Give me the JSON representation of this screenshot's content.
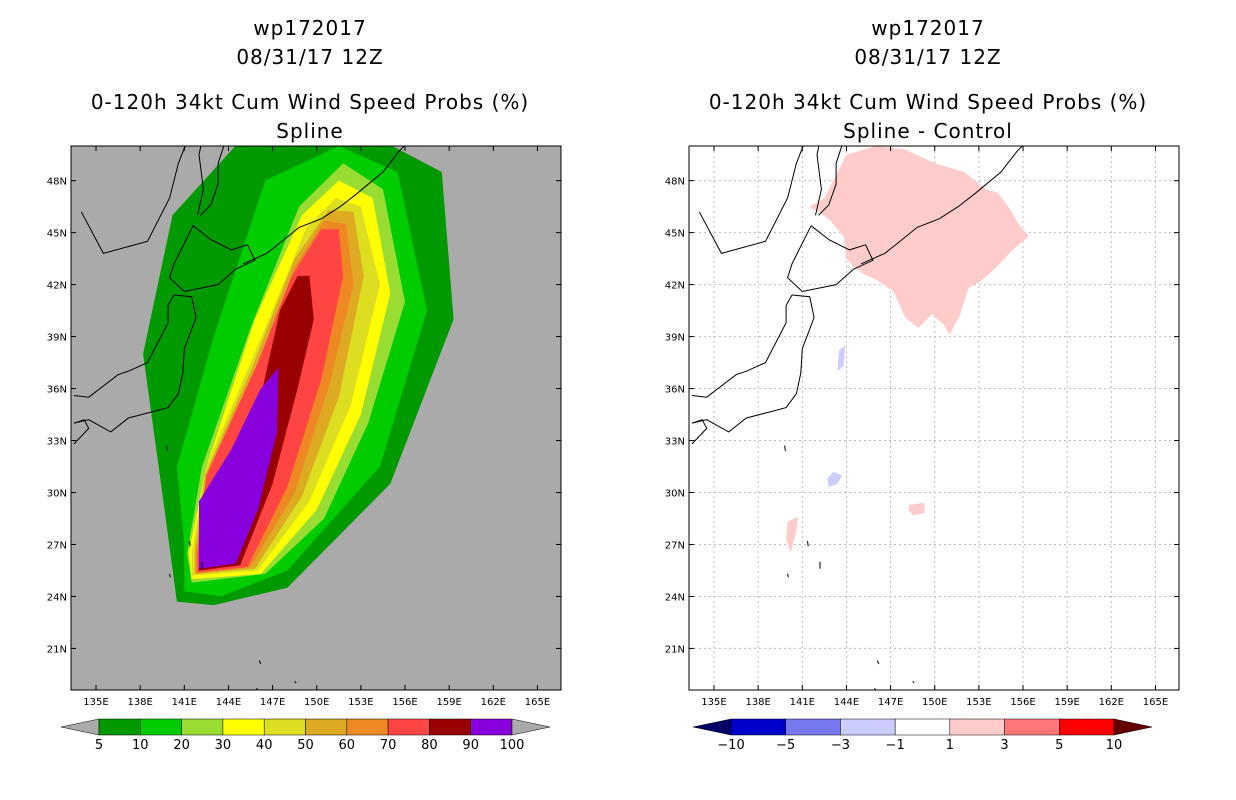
{
  "chart_data": [
    {
      "type": "heatmap",
      "storm_id": "wp172017",
      "datetime": "08/31/17 12Z",
      "title": "0-120h 34kt Cum Wind Speed Probs (%)",
      "subtitle": "Spline",
      "xlabel": "",
      "ylabel": "",
      "x_ticks": [
        "135E",
        "138E",
        "141E",
        "144E",
        "147E",
        "150E",
        "153E",
        "156E",
        "159E",
        "162E",
        "165E"
      ],
      "y_ticks": [
        "48N",
        "45N",
        "42N",
        "39N",
        "36N",
        "33N",
        "30N",
        "27N",
        "24N",
        "21N"
      ],
      "xlim": [
        133.3,
        166.6
      ],
      "ylim": [
        18.6,
        50.0
      ],
      "grid": false,
      "legend": {
        "type": "colorbar",
        "position": "bottom",
        "labels": [
          "5",
          "10",
          "20",
          "30",
          "40",
          "50",
          "60",
          "70",
          "80",
          "90",
          "100"
        ],
        "colors": [
          "#009900",
          "#00cc00",
          "#99dd33",
          "#ffff00",
          "#dddd22",
          "#ddaa22",
          "#ee8822",
          "#ff4444",
          "#990000",
          "#8800dd"
        ],
        "under_color": "#aaaaaa",
        "over_color": "#aaaaaa"
      },
      "levels": [
        {
          "min": 5,
          "color": "#009900",
          "lon": [
            140.5,
            143.0,
            148.0,
            155.0,
            159.3,
            158.5,
            154.0,
            145.0,
            140.2,
            138.2,
            139.5
          ],
          "lat": [
            23.7,
            23.5,
            24.5,
            30.5,
            40.0,
            48.5,
            50.5,
            50.5,
            46.0,
            38.0,
            30.0
          ]
        },
        {
          "min": 10,
          "color": "#00cc00",
          "lon": [
            141.0,
            143.5,
            148.0,
            154.3,
            157.5,
            155.5,
            151.5,
            146.5,
            143.0,
            140.5,
            141.0
          ],
          "lat": [
            24.3,
            24.0,
            25.5,
            31.5,
            40.5,
            48.5,
            50.0,
            48.0,
            39.0,
            31.5,
            27.0
          ]
        },
        {
          "min": 20,
          "color": "#99dd33",
          "lon": [
            141.5,
            146.5,
            150.5,
            153.5,
            156.0,
            154.5,
            151.8,
            148.8,
            145.5,
            142.2,
            141.2
          ],
          "lat": [
            24.8,
            25.3,
            28.5,
            34.0,
            41.0,
            47.5,
            49.0,
            46.5,
            39.5,
            31.5,
            26.5
          ]
        },
        {
          "min": 30,
          "color": "#ffff00",
          "lon": [
            141.5,
            146.2,
            150.0,
            153.0,
            155.0,
            153.8,
            151.5,
            149.0,
            145.8,
            142.5,
            141.3
          ],
          "lat": [
            25.0,
            25.3,
            29.0,
            34.5,
            41.5,
            47.0,
            48.0,
            46.0,
            40.0,
            31.5,
            26.5
          ]
        },
        {
          "min": 40,
          "color": "#dddd22",
          "lon": [
            141.5,
            146.0,
            149.5,
            152.3,
            154.3,
            153.0,
            151.3,
            149.3,
            146.5,
            142.5,
            141.5
          ],
          "lat": [
            25.2,
            25.5,
            29.5,
            35.0,
            42.0,
            46.5,
            47.0,
            45.3,
            39.5,
            31.5,
            26.5
          ]
        },
        {
          "min": 50,
          "color": "#ddaa22",
          "lon": [
            141.7,
            145.8,
            149.0,
            151.5,
            153.2,
            152.5,
            150.8,
            148.5,
            145.5,
            142.4,
            141.7
          ],
          "lat": [
            25.3,
            25.6,
            29.8,
            35.5,
            42.5,
            46.2,
            46.3,
            43.5,
            37.0,
            31.0,
            26.5
          ]
        },
        {
          "min": 60,
          "color": "#ee8822",
          "lon": [
            141.8,
            145.5,
            148.5,
            150.8,
            152.5,
            152.0,
            150.5,
            148.5,
            146.0,
            142.5,
            141.8
          ],
          "lat": [
            25.3,
            25.7,
            30.0,
            36.0,
            42.0,
            45.5,
            45.7,
            43.0,
            37.0,
            31.0,
            26.5
          ]
        },
        {
          "min": 70,
          "color": "#ff4444",
          "lon": [
            141.9,
            145.3,
            148.0,
            150.3,
            151.8,
            151.5,
            150.3,
            148.3,
            146.0,
            142.5,
            141.9
          ],
          "lat": [
            25.4,
            25.7,
            30.3,
            36.5,
            42.5,
            45.2,
            45.2,
            42.5,
            37.5,
            31.0,
            26.5
          ]
        },
        {
          "min": 80,
          "color": "#990000",
          "lon": [
            142.0,
            144.8,
            147.0,
            148.7,
            149.8,
            149.5,
            148.7,
            147.5,
            145.8,
            142.5,
            142.0
          ],
          "lat": [
            25.5,
            25.8,
            30.5,
            36.0,
            40.0,
            42.5,
            42.5,
            40.5,
            34.0,
            29.0,
            26.5
          ]
        },
        {
          "min": 90,
          "color": "#8800dd",
          "lon": [
            142.0,
            144.5,
            146.0,
            147.3,
            147.4,
            146.2,
            144.2,
            142.0,
            142.0
          ],
          "lat": [
            25.6,
            25.9,
            29.0,
            33.5,
            37.2,
            36.0,
            32.5,
            29.5,
            26.5
          ]
        }
      ]
    },
    {
      "type": "heatmap",
      "storm_id": "wp172017",
      "datetime": "08/31/17 12Z",
      "title": "0-120h 34kt Cum Wind Speed Probs (%)",
      "subtitle": "Spline - Control",
      "xlabel": "",
      "ylabel": "",
      "x_ticks": [
        "135E",
        "138E",
        "141E",
        "144E",
        "147E",
        "150E",
        "153E",
        "156E",
        "159E",
        "162E",
        "165E"
      ],
      "y_ticks": [
        "48N",
        "45N",
        "42N",
        "39N",
        "36N",
        "33N",
        "30N",
        "27N",
        "24N",
        "21N"
      ],
      "xlim": [
        133.3,
        166.6
      ],
      "ylim": [
        18.6,
        50.0
      ],
      "grid": true,
      "legend": {
        "type": "colorbar",
        "position": "bottom",
        "labels": [
          "-10",
          "-5",
          "-3",
          "-1",
          "1",
          "3",
          "5",
          "10"
        ],
        "colors": [
          "#0000cc",
          "#7777ee",
          "#ccccff",
          "#ffffff",
          "#ffcccc",
          "#ff7777",
          "#ff0000"
        ],
        "under_color": "#000066",
        "over_color": "#660000"
      },
      "positive_areas": [
        {
          "value": "1 to 3",
          "color": "#ffcccc",
          "lon": [
            141.5,
            142.5,
            144.0,
            146.0,
            148.0,
            150.0,
            152.0,
            153.5,
            154.3,
            155.0,
            155.7,
            156.4,
            155.3,
            154.2,
            153.3,
            152.3,
            151.7,
            151.0,
            150.6,
            149.8,
            148.9,
            148.0,
            147.2,
            146.2,
            145.2,
            144.5,
            144.0,
            143.8,
            142.9,
            142.3,
            141.7,
            141.4
          ],
          "lat": [
            46.5,
            47.0,
            49.5,
            50.0,
            49.8,
            49.0,
            48.5,
            47.5,
            47.3,
            46.5,
            45.5,
            44.8,
            44.0,
            43.0,
            42.3,
            41.8,
            40.2,
            39.1,
            39.7,
            40.3,
            39.5,
            40.1,
            41.6,
            42.2,
            42.6,
            43.0,
            43.5,
            44.8,
            45.7,
            46.1,
            46.4,
            46.5
          ]
        },
        {
          "value": "1 to 3",
          "color": "#ffcccc",
          "lon": [
            148.3,
            149.3,
            149.3,
            148.5,
            148.2
          ],
          "lat": [
            29.3,
            29.4,
            28.8,
            28.7,
            29.0
          ]
        },
        {
          "value": "1 to 3",
          "color": "#ffcccc",
          "lon": [
            140.0,
            140.7,
            140.6,
            140.2,
            139.9
          ],
          "lat": [
            28.3,
            28.6,
            27.8,
            26.5,
            27.3
          ]
        }
      ],
      "negative_areas": [
        {
          "value": "-1 to -3",
          "color": "#ccccff",
          "lon": [
            143.1,
            143.7,
            143.4,
            142.8,
            142.7
          ],
          "lat": [
            31.2,
            31.0,
            30.5,
            30.3,
            30.8
          ]
        },
        {
          "value": "-1 to -3",
          "color": "#ccccff",
          "lon": [
            143.5,
            143.9,
            143.8,
            143.4
          ],
          "lat": [
            38.2,
            38.5,
            37.3,
            37.0
          ]
        }
      ]
    }
  ]
}
